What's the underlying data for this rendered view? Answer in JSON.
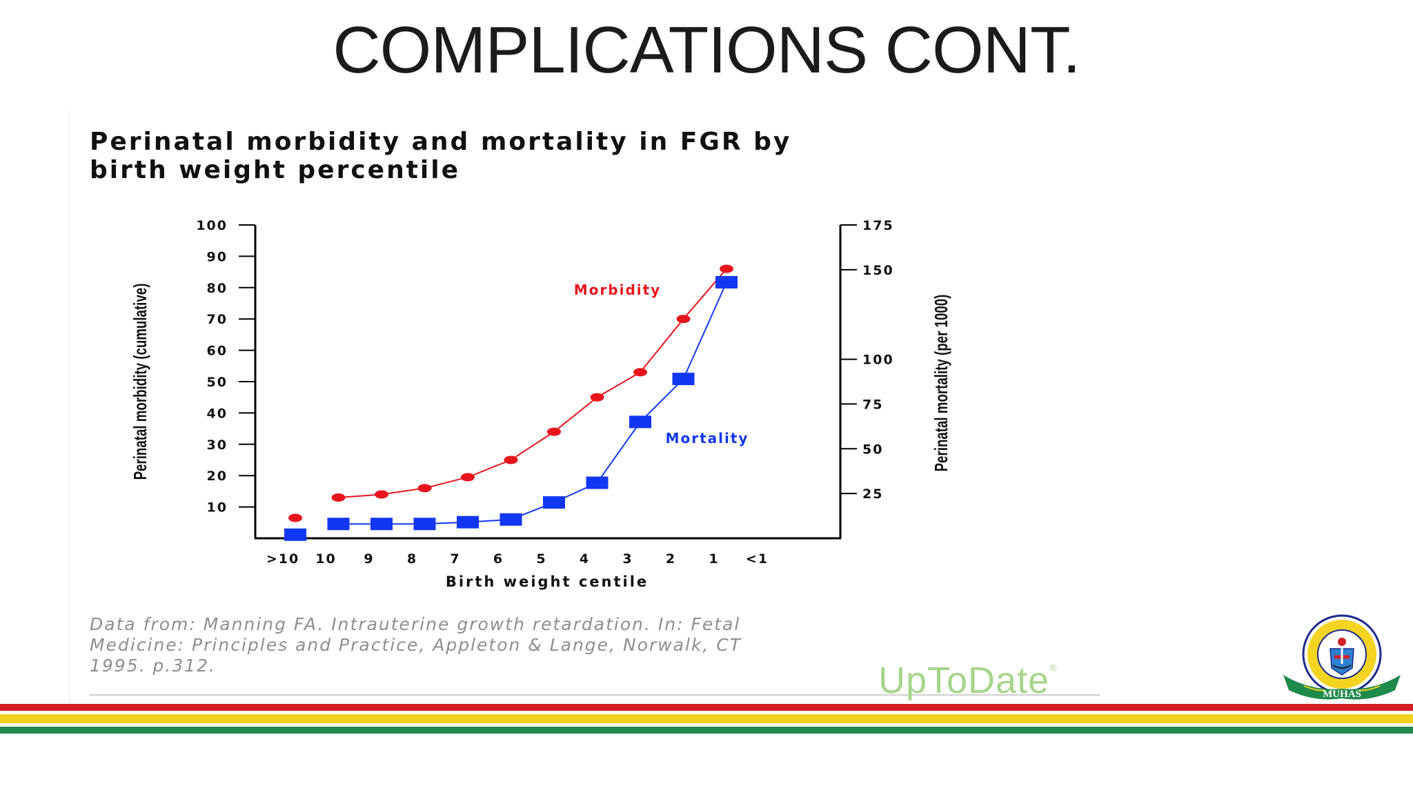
{
  "slide": {
    "title": "COMPLICATIONS CONT."
  },
  "chart_title": {
    "line1": "Perinatal morbidity and mortality in FGR by",
    "line2": "birth weight percentile"
  },
  "source": {
    "line1": "Data from: Manning FA. Intrauterine growth retardation. In: Fetal",
    "line2": "Medicine: Principles and Practice, Appleton & Lange, Norwalk, CT",
    "line3": "1995. p.312."
  },
  "brand": {
    "name": "UpToDate",
    "mark": "®"
  },
  "logo": {
    "banner": "MUHAS",
    "ring_text": "MUHIMBILI UNIVERSITY OF HEALTH AND ALLIED SCIENCES"
  },
  "colors": {
    "morbidity": "#e8141c",
    "mortality": "#1237f2",
    "axis": "#000000",
    "stripe_red": "#d21f26",
    "stripe_yellow": "#f2d01c",
    "stripe_green": "#228a4e"
  },
  "chart_data": {
    "type": "line",
    "title": "Perinatal morbidity and mortality in FGR by birth weight percentile",
    "xlabel": "Birth weight centile",
    "categories": [
      ">10",
      "10",
      "9",
      "8",
      "7",
      "6",
      "5",
      "4",
      "3",
      "2",
      "1",
      "<1"
    ],
    "y_left": {
      "label": "Perinatal morbidity (cumulative)",
      "range": [
        0,
        100
      ],
      "ticks": [
        10,
        20,
        30,
        40,
        50,
        60,
        70,
        80,
        90,
        100
      ]
    },
    "y_right": {
      "label": "Perinatal mortality (per 1000)",
      "range": [
        0,
        175
      ],
      "ticks": [
        25,
        50,
        75,
        100,
        150,
        175
      ]
    },
    "series": [
      {
        "name": "Morbidity",
        "axis": "left",
        "marker": "circle",
        "values": [
          6.5,
          13,
          14,
          16,
          19.5,
          25,
          34,
          45,
          53,
          70,
          86,
          null
        ]
      },
      {
        "name": "Mortality",
        "axis": "right",
        "marker": "square",
        "values": [
          2,
          8,
          8,
          8,
          9,
          10.5,
          20,
          31,
          65,
          89,
          143,
          null
        ]
      }
    ],
    "annotations": [
      {
        "text": "Morbidity",
        "series": "Morbidity"
      },
      {
        "text": "Mortality",
        "series": "Mortality"
      }
    ]
  }
}
